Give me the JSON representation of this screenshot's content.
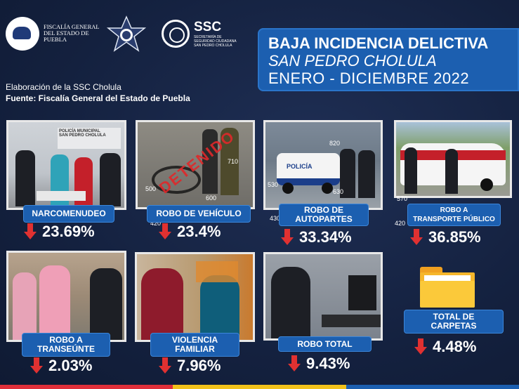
{
  "logos": {
    "fiscalia_text": "FISCALÍA GENERAL\nDEL ESTADO DE\nPUEBLA",
    "ssc_big": "SSC",
    "ssc_small": "SECRETARÍA DE\nSEGURIDAD CIUDADANA\nSAN PEDRO CHOLULA"
  },
  "title": {
    "line1": "BAJA INCIDENCIA DELICTIVA",
    "line2": "SAN PEDRO CHOLULA",
    "line3": "ENERO - DICIEMBRE 2022"
  },
  "credits": {
    "elaboracion": "Elaboración de la SSC Cholula",
    "fuente": "Fuente: Fiscalía General del Estado de Puebla"
  },
  "cards": [
    {
      "label": "NARCOMENUDEO",
      "percent": "23.69%"
    },
    {
      "label": "ROBO DE VEHÍCULO",
      "percent": "23.4%"
    },
    {
      "label": "ROBO DE\nAUTOPARTES",
      "percent": "33.34%"
    },
    {
      "label": "ROBO A\nTRANSPORTE PÚBLICO",
      "percent": "36.85%"
    },
    {
      "label": "ROBO A\nTRANSEÚNTE",
      "percent": "2.03%"
    },
    {
      "label": "VIOLENCIA\nFAMILIAR",
      "percent": "7.96%"
    },
    {
      "label": "ROBO TOTAL",
      "percent": "9.43%"
    },
    {
      "label": "TOTAL DE\nCARPETAS",
      "percent": "4.48%"
    }
  ],
  "photo_numbers": [
    "500",
    "600",
    "710",
    "420",
    "530",
    "820",
    "630",
    "430",
    "570",
    "420"
  ],
  "photo_text": {
    "policia_sign": "POLICÍA MUNICIPAL\nSAN PEDRO CHOLULA",
    "stamp": "DETENIDO",
    "truck": "POLICÍA"
  },
  "colors": {
    "accent": "#1c5fb0",
    "down_arrow": "#e03131",
    "background": "#14213f"
  }
}
